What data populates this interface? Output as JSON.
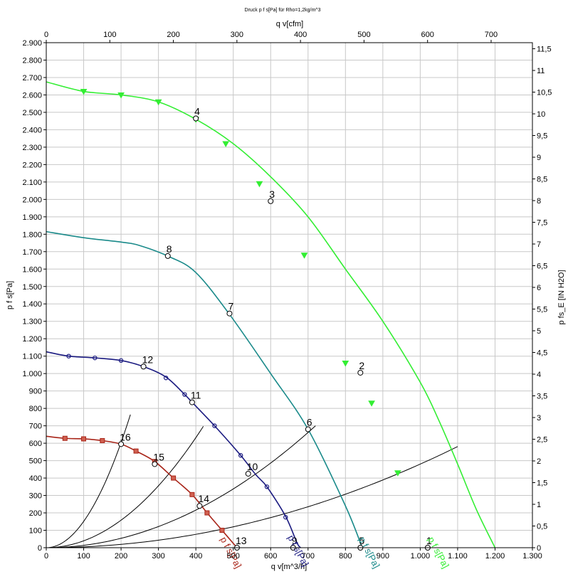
{
  "chart_data": {
    "type": "line",
    "title": "Druck p f s[Pa] für Rho=1,2kg/m^3",
    "x_bottom": {
      "label": "q v[m^3/h]",
      "range": [
        0,
        1300
      ],
      "ticks": [
        0,
        100,
        200,
        300,
        400,
        500,
        600,
        700,
        800,
        900,
        1000,
        1100,
        1200,
        1300
      ],
      "tick_labels": [
        "0",
        "100",
        "200",
        "300",
        "400",
        "500",
        "600",
        "700",
        "800",
        "900",
        "1.000",
        "1.100",
        "1.200",
        "1.300"
      ]
    },
    "x_top": {
      "label": "q v[cfm]",
      "range": [
        0,
        765
      ],
      "ticks": [
        0,
        100,
        200,
        300,
        400,
        500,
        600,
        700
      ],
      "tick_labels": [
        "0",
        "100",
        "200",
        "300",
        "400",
        "500",
        "600",
        "700"
      ]
    },
    "y_left": {
      "label": "p f s[Pa]",
      "range": [
        0,
        2900
      ],
      "ticks": [
        0,
        100,
        200,
        300,
        400,
        500,
        600,
        700,
        800,
        900,
        1000,
        1100,
        1200,
        1300,
        1400,
        1500,
        1600,
        1700,
        1800,
        1900,
        2000,
        2100,
        2200,
        2300,
        2400,
        2500,
        2600,
        2700,
        2800,
        2900
      ],
      "tick_labels": [
        "0",
        "100",
        "200",
        "300",
        "400",
        "500",
        "600",
        "700",
        "800",
        "900",
        "1.000",
        "1.100",
        "1.200",
        "1.300",
        "1.400",
        "1.500",
        "1.600",
        "1.700",
        "1.800",
        "1.900",
        "2.000",
        "2.100",
        "2.200",
        "2.300",
        "2.400",
        "2.500",
        "2.600",
        "2.700",
        "2.800",
        "2.900"
      ]
    },
    "y_right": {
      "label": "p fs_E [IN H2O]",
      "range": [
        0,
        11.64
      ],
      "ticks": [
        0,
        0.5,
        1,
        1.5,
        2,
        2.5,
        3,
        3.5,
        4,
        4.5,
        5,
        5.5,
        6,
        6.5,
        7,
        7.5,
        8,
        8.5,
        9,
        9.5,
        10,
        10.5,
        11,
        11.5
      ],
      "tick_labels": [
        "0",
        "0,5",
        "1",
        "1,5",
        "2",
        "2,5",
        "3",
        "3,5",
        "4",
        "4,5",
        "5",
        "5,5",
        "6",
        "6,5",
        "7",
        "7,5",
        "8",
        "8,5",
        "9",
        "9,5",
        "10",
        "10,5",
        "11",
        "11,5"
      ]
    },
    "grid": true,
    "series": [
      {
        "name": "p f s[Pa]",
        "color": "#33ee33",
        "marker": "triangle-down",
        "points": [
          [
            0,
            2675
          ],
          [
            100,
            2620
          ],
          [
            200,
            2600
          ],
          [
            300,
            2560
          ],
          [
            400,
            2460
          ],
          [
            500,
            2320
          ],
          [
            600,
            2130
          ],
          [
            700,
            1900
          ],
          [
            800,
            1600
          ],
          [
            900,
            1300
          ],
          [
            1000,
            950
          ],
          [
            1050,
            730
          ],
          [
            1100,
            480
          ],
          [
            1150,
            220
          ],
          [
            1200,
            0
          ]
        ],
        "marker_points": [
          [
            100,
            2620
          ],
          [
            200,
            2600
          ],
          [
            300,
            2560
          ],
          [
            400,
            2460
          ],
          [
            480,
            2320
          ],
          [
            570,
            2090
          ],
          [
            690,
            1680
          ],
          [
            800,
            1060
          ],
          [
            870,
            830
          ],
          [
            940,
            430
          ]
        ]
      },
      {
        "name": "p f s[Pa]",
        "color": "#1a8a8a",
        "marker": "none",
        "points": [
          [
            0,
            1815
          ],
          [
            100,
            1780
          ],
          [
            200,
            1755
          ],
          [
            250,
            1735
          ],
          [
            330,
            1670
          ],
          [
            400,
            1580
          ],
          [
            490,
            1340
          ],
          [
            600,
            1000
          ],
          [
            700,
            680
          ],
          [
            800,
            240
          ],
          [
            845,
            0
          ]
        ],
        "marker_points": []
      },
      {
        "name": "p f s[Pa]",
        "color": "#1a1a80",
        "marker": "circle",
        "points": [
          [
            0,
            1125
          ],
          [
            60,
            1100
          ],
          [
            130,
            1090
          ],
          [
            200,
            1075
          ],
          [
            260,
            1040
          ],
          [
            320,
            980
          ],
          [
            370,
            880
          ],
          [
            390,
            835
          ],
          [
            450,
            700
          ],
          [
            520,
            530
          ],
          [
            560,
            420
          ],
          [
            590,
            350
          ],
          [
            640,
            180
          ],
          [
            670,
            30
          ],
          [
            680,
            0
          ]
        ],
        "marker_points": [
          [
            60,
            1100
          ],
          [
            130,
            1090
          ],
          [
            200,
            1075
          ],
          [
            320,
            975
          ],
          [
            370,
            880
          ],
          [
            450,
            700
          ],
          [
            520,
            530
          ],
          [
            590,
            350
          ],
          [
            640,
            175
          ]
        ]
      },
      {
        "name": "p f s[Pa]",
        "color": "#a82418",
        "marker": "square",
        "points": [
          [
            0,
            640
          ],
          [
            50,
            628
          ],
          [
            100,
            625
          ],
          [
            150,
            615
          ],
          [
            200,
            595
          ],
          [
            240,
            555
          ],
          [
            290,
            495
          ],
          [
            340,
            400
          ],
          [
            390,
            305
          ],
          [
            430,
            200
          ],
          [
            470,
            100
          ],
          [
            510,
            0
          ]
        ],
        "marker_points": [
          [
            50,
            628
          ],
          [
            100,
            625
          ],
          [
            150,
            615
          ],
          [
            240,
            555
          ],
          [
            290,
            495
          ],
          [
            340,
            400
          ],
          [
            390,
            305
          ],
          [
            430,
            200
          ],
          [
            470,
            100
          ]
        ]
      }
    ],
    "system_curves": [
      {
        "k": 0.00048,
        "x_max": 1100
      },
      {
        "k": 0.00135,
        "x_max": 720
      },
      {
        "k": 0.00395,
        "x_max": 420
      },
      {
        "k": 0.0151,
        "x_max": 225
      }
    ],
    "operating_points": [
      {
        "label": "1",
        "x": 1020,
        "y": 0
      },
      {
        "label": "2",
        "x": 840,
        "y": 1005
      },
      {
        "label": "3",
        "x": 600,
        "y": 1990
      },
      {
        "label": "4",
        "x": 400,
        "y": 2465
      },
      {
        "label": "5",
        "x": 840,
        "y": 0
      },
      {
        "label": "6",
        "x": 700,
        "y": 680
      },
      {
        "label": "7",
        "x": 490,
        "y": 1345
      },
      {
        "label": "8",
        "x": 325,
        "y": 1675
      },
      {
        "label": "9",
        "x": 660,
        "y": 0
      },
      {
        "label": "10",
        "x": 540,
        "y": 425
      },
      {
        "label": "11",
        "x": 390,
        "y": 835
      },
      {
        "label": "12",
        "x": 260,
        "y": 1040
      },
      {
        "label": "13",
        "x": 510,
        "y": 0
      },
      {
        "label": "14",
        "x": 410,
        "y": 240
      },
      {
        "label": "15",
        "x": 290,
        "y": 480
      },
      {
        "label": "16",
        "x": 200,
        "y": 595
      }
    ],
    "annotations": [
      {
        "text": "p f s[Pa]",
        "color": "#33ee33",
        "x": 1020,
        "y": 50
      },
      {
        "text": "p f s[Pa]",
        "color": "#1a8a8a",
        "x": 835,
        "y": 50
      },
      {
        "text": "p f s[Pa]",
        "color": "#1a1a80",
        "x": 645,
        "y": 60
      },
      {
        "text": "p f s[Pa]",
        "color": "#a82418",
        "x": 465,
        "y": 50
      }
    ]
  }
}
